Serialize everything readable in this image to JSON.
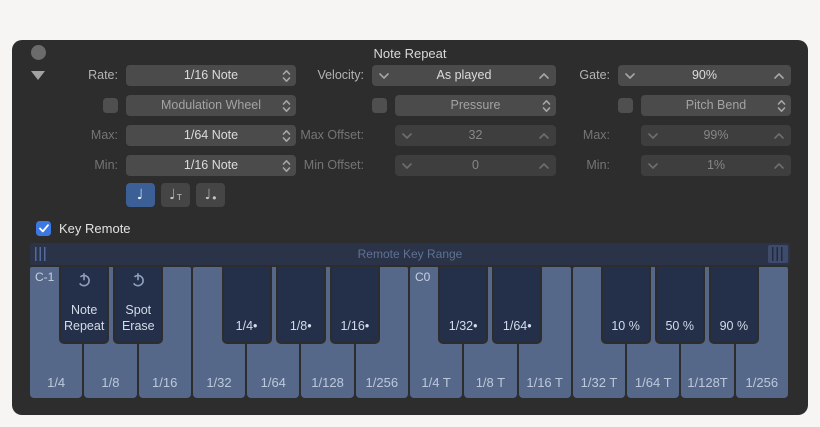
{
  "window": {
    "title": "Note Repeat"
  },
  "columns": {
    "left": {
      "rate_label": "Rate:",
      "rate_value": "1/16 Note",
      "mod_label": "Modulation Wheel",
      "mod_checked": false,
      "max_label": "Max:",
      "max_value": "1/64 Note",
      "min_label": "Min:",
      "min_value": "1/16 Note",
      "note_buttons": [
        {
          "name": "normal",
          "glyph": "♩",
          "suffix": "",
          "selected": true
        },
        {
          "name": "triplet",
          "glyph": "♩",
          "suffix": "T",
          "selected": false
        },
        {
          "name": "dotted",
          "glyph": "♩",
          "suffix": "•",
          "selected": false
        }
      ]
    },
    "middle": {
      "velocity_label": "Velocity:",
      "velocity_value": "As played",
      "source_label": "Pressure",
      "source_checked": false,
      "max_label": "Max Offset:",
      "max_value": "32",
      "min_label": "Min Offset:",
      "min_value": "0"
    },
    "right": {
      "gate_label": "Gate:",
      "gate_value": "90%",
      "source_label": "Pitch Bend",
      "source_checked": false,
      "max_label": "Max:",
      "max_value": "99%",
      "min_label": "Min:",
      "min_value": "1%"
    }
  },
  "key_remote": {
    "label": "Key Remote",
    "checked": true
  },
  "range_bar": {
    "label": "Remote Key Range"
  },
  "keyboard": {
    "octaves": [
      {
        "c_label": "C-1",
        "white_keys": [
          "1/4",
          "1/8",
          "1/16",
          "1/32",
          "1/64",
          "1/128",
          "1/256"
        ],
        "black_keys": [
          {
            "slot": 1,
            "label": "Note\nRepeat",
            "power": true
          },
          {
            "slot": 2,
            "label": "Spot\nErase",
            "power": true
          },
          {
            "slot": 4,
            "label": "1/4•",
            "power": false
          },
          {
            "slot": 5,
            "label": "1/8•",
            "power": false
          },
          {
            "slot": 6,
            "label": "1/16•",
            "power": false
          }
        ]
      },
      {
        "c_label": "C0",
        "white_keys": [
          "1/4 T",
          "1/8 T",
          "1/16 T",
          "1/32 T",
          "1/64 T",
          "1/128T",
          "1/256"
        ],
        "black_keys": [
          {
            "slot": 1,
            "label": "1/32•",
            "power": false
          },
          {
            "slot": 2,
            "label": "1/64•",
            "power": false
          },
          {
            "slot": 4,
            "label": "10 %",
            "power": false
          },
          {
            "slot": 5,
            "label": "50 %",
            "power": false
          },
          {
            "slot": 6,
            "label": "90 %",
            "power": false
          }
        ]
      }
    ]
  },
  "colors": {
    "dialog_bg": "#2d2d2d",
    "accent_blue": "#3c78e2",
    "selected_note_button": "#3c6095",
    "white_key": "#56688a",
    "black_key": "#243049",
    "range_bar_bg": "#2a3348"
  }
}
